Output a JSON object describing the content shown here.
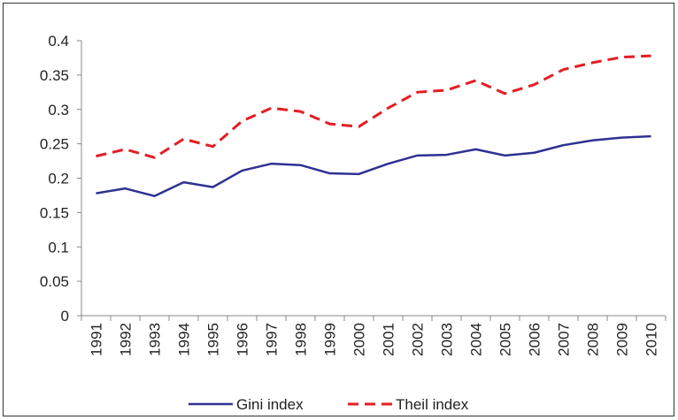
{
  "chart_data": {
    "type": "line",
    "categories": [
      "1991",
      "1992",
      "1993",
      "1994",
      "1995",
      "1996",
      "1997",
      "1998",
      "1999",
      "2000",
      "2001",
      "2002",
      "2003",
      "2004",
      "2005",
      "2006",
      "2007",
      "2008",
      "2009",
      "2010"
    ],
    "series": [
      {
        "name": "Gini index",
        "color": "#2e3192",
        "dash": false,
        "values": [
          0.178,
          0.185,
          0.174,
          0.194,
          0.187,
          0.211,
          0.221,
          0.219,
          0.207,
          0.206,
          0.221,
          0.233,
          0.234,
          0.242,
          0.233,
          0.237,
          0.248,
          0.255,
          0.259,
          0.261
        ]
      },
      {
        "name": "Theil index",
        "color": "#e31e24",
        "dash": true,
        "values": [
          0.232,
          0.242,
          0.23,
          0.257,
          0.246,
          0.283,
          0.302,
          0.297,
          0.279,
          0.275,
          0.302,
          0.325,
          0.328,
          0.342,
          0.323,
          0.336,
          0.358,
          0.368,
          0.376,
          0.378
        ]
      }
    ],
    "ylim": [
      0,
      0.4
    ],
    "yticks": [
      0,
      0.05,
      0.1,
      0.15,
      0.2,
      0.25,
      0.3,
      0.35,
      0.4
    ],
    "grid": false,
    "legend": "bottom"
  }
}
